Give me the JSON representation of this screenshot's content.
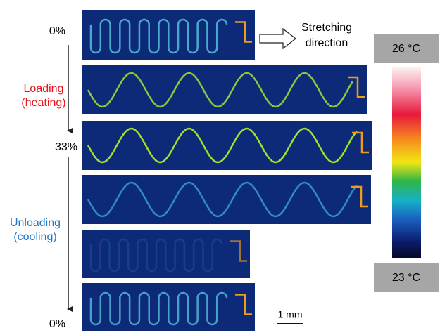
{
  "labels": {
    "strain_start": "0%",
    "loading": "Loading",
    "loading_sub": "(heating)",
    "strain_peak": "33%",
    "unloading": "Unloading",
    "unloading_sub": "(cooling)",
    "strain_end": "0%"
  },
  "stretching": [
    "Stretching",
    "direction"
  ],
  "colorbar": {
    "max": "26 °C",
    "min": "23 °C"
  },
  "scale_bar": "1 mm"
}
